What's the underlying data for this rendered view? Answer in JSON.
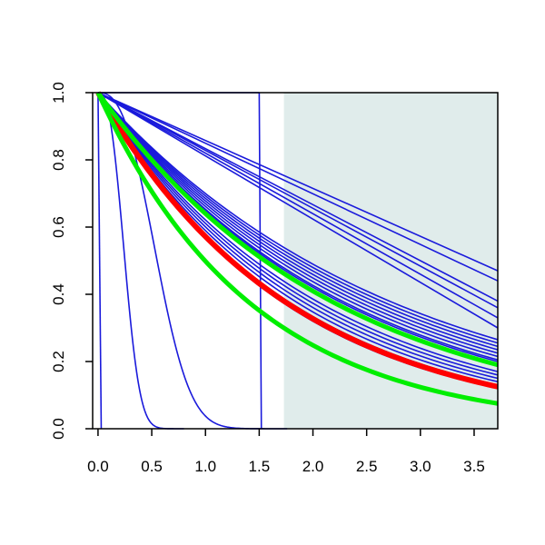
{
  "chart_data": {
    "type": "line",
    "title": "",
    "xlabel": "",
    "ylabel": "",
    "xlim": [
      -0.05,
      3.72
    ],
    "ylim": [
      0.0,
      1.0
    ],
    "x_ticks": [
      "0.0",
      "0.5",
      "1.0",
      "1.5",
      "2.0",
      "2.5",
      "3.0",
      "3.5"
    ],
    "y_ticks": [
      "0.0",
      "0.2",
      "0.4",
      "0.6",
      "0.8",
      "1.0"
    ],
    "shaded_region": {
      "x_from": 1.73,
      "x_to": 3.72,
      "color": "#e0eceb"
    },
    "colors": {
      "blue": "#1a1adb",
      "red": "#ff0000",
      "green": "#00ee00",
      "axis": "#000000"
    },
    "series": [
      {
        "kind": "linear",
        "values": [
          [
            0,
            1.0
          ],
          [
            3.72,
            0.47
          ]
        ],
        "color": "blue",
        "width": 1.6
      },
      {
        "kind": "linear",
        "values": [
          [
            0,
            1.0
          ],
          [
            3.72,
            0.44
          ]
        ],
        "color": "blue",
        "width": 1.6
      },
      {
        "kind": "linear",
        "values": [
          [
            0,
            1.0
          ],
          [
            3.72,
            0.38
          ]
        ],
        "color": "blue",
        "width": 1.6
      },
      {
        "kind": "linear",
        "values": [
          [
            0,
            1.0
          ],
          [
            3.72,
            0.36
          ]
        ],
        "color": "blue",
        "width": 1.6
      },
      {
        "kind": "linear",
        "values": [
          [
            0,
            1.0
          ],
          [
            3.72,
            0.33
          ]
        ],
        "color": "blue",
        "width": 1.6
      },
      {
        "kind": "linear",
        "values": [
          [
            0,
            1.0
          ],
          [
            3.72,
            0.3
          ]
        ],
        "color": "blue",
        "width": 1.6
      },
      {
        "kind": "exp",
        "values": [
          [
            0,
            1.0
          ],
          [
            3.72,
            0.265
          ]
        ],
        "color": "blue",
        "width": 1.6
      },
      {
        "kind": "exp",
        "values": [
          [
            0,
            1.0
          ],
          [
            3.72,
            0.255
          ]
        ],
        "color": "blue",
        "width": 1.6
      },
      {
        "kind": "exp",
        "values": [
          [
            0,
            1.0
          ],
          [
            3.72,
            0.245
          ]
        ],
        "color": "blue",
        "width": 1.6
      },
      {
        "kind": "exp",
        "values": [
          [
            0,
            1.0
          ],
          [
            3.72,
            0.235
          ]
        ],
        "color": "blue",
        "width": 1.6
      },
      {
        "kind": "exp",
        "values": [
          [
            0,
            1.0
          ],
          [
            3.72,
            0.225
          ]
        ],
        "color": "blue",
        "width": 1.6
      },
      {
        "kind": "exp",
        "values": [
          [
            0,
            1.0
          ],
          [
            3.72,
            0.215
          ]
        ],
        "color": "blue",
        "width": 1.6
      },
      {
        "kind": "exp",
        "values": [
          [
            0,
            1.0
          ],
          [
            3.72,
            0.205
          ]
        ],
        "color": "blue",
        "width": 1.6
      },
      {
        "kind": "exp",
        "values": [
          [
            0,
            1.0
          ],
          [
            3.72,
            0.2
          ]
        ],
        "color": "blue",
        "width": 1.6
      },
      {
        "kind": "exp",
        "values": [
          [
            0,
            1.0
          ],
          [
            3.72,
            0.17
          ]
        ],
        "color": "blue",
        "width": 1.6
      },
      {
        "kind": "exp",
        "values": [
          [
            0,
            1.0
          ],
          [
            3.72,
            0.16
          ]
        ],
        "color": "blue",
        "width": 1.6
      },
      {
        "kind": "exp",
        "values": [
          [
            0,
            1.0
          ],
          [
            3.72,
            0.15
          ]
        ],
        "color": "blue",
        "width": 1.6
      },
      {
        "kind": "exp",
        "values": [
          [
            0,
            1.0
          ],
          [
            3.72,
            0.14
          ]
        ],
        "color": "blue",
        "width": 1.6
      },
      {
        "kind": "exp",
        "values": [
          [
            0,
            1.0
          ],
          [
            3.72,
            0.13
          ]
        ],
        "color": "blue",
        "width": 1.6
      },
      {
        "kind": "exp",
        "values": [
          [
            0,
            1.0
          ],
          [
            3.72,
            0.12
          ]
        ],
        "color": "blue",
        "width": 1.6
      },
      {
        "kind": "weibull",
        "values": [
          [
            0,
            1.0
          ],
          [
            0.25,
            0.5
          ],
          [
            0.9,
            0.0
          ]
        ],
        "color": "blue",
        "width": 1.6
      },
      {
        "kind": "weibull",
        "values": [
          [
            0,
            1.0
          ],
          [
            0.55,
            0.5
          ],
          [
            1.2,
            0.0
          ]
        ],
        "color": "blue",
        "width": 1.6
      },
      {
        "kind": "step",
        "values": [
          [
            0,
            1.0
          ],
          [
            1.5,
            1.0
          ],
          [
            1.52,
            0.0
          ]
        ],
        "color": "blue",
        "width": 1.6
      },
      {
        "kind": "step",
        "values": [
          [
            0,
            1.0
          ],
          [
            0.03,
            0.0
          ]
        ],
        "color": "blue",
        "width": 1.6
      },
      {
        "kind": "exp",
        "values": [
          [
            0,
            1.0
          ],
          [
            3.72,
            0.125
          ]
        ],
        "color": "red",
        "width": 6
      },
      {
        "kind": "exp",
        "values": [
          [
            0,
            1.0
          ],
          [
            3.72,
            0.19
          ]
        ],
        "color": "green",
        "width": 5
      },
      {
        "kind": "exp",
        "values": [
          [
            0,
            1.0
          ],
          [
            3.72,
            0.075
          ]
        ],
        "color": "green",
        "width": 5
      }
    ]
  }
}
